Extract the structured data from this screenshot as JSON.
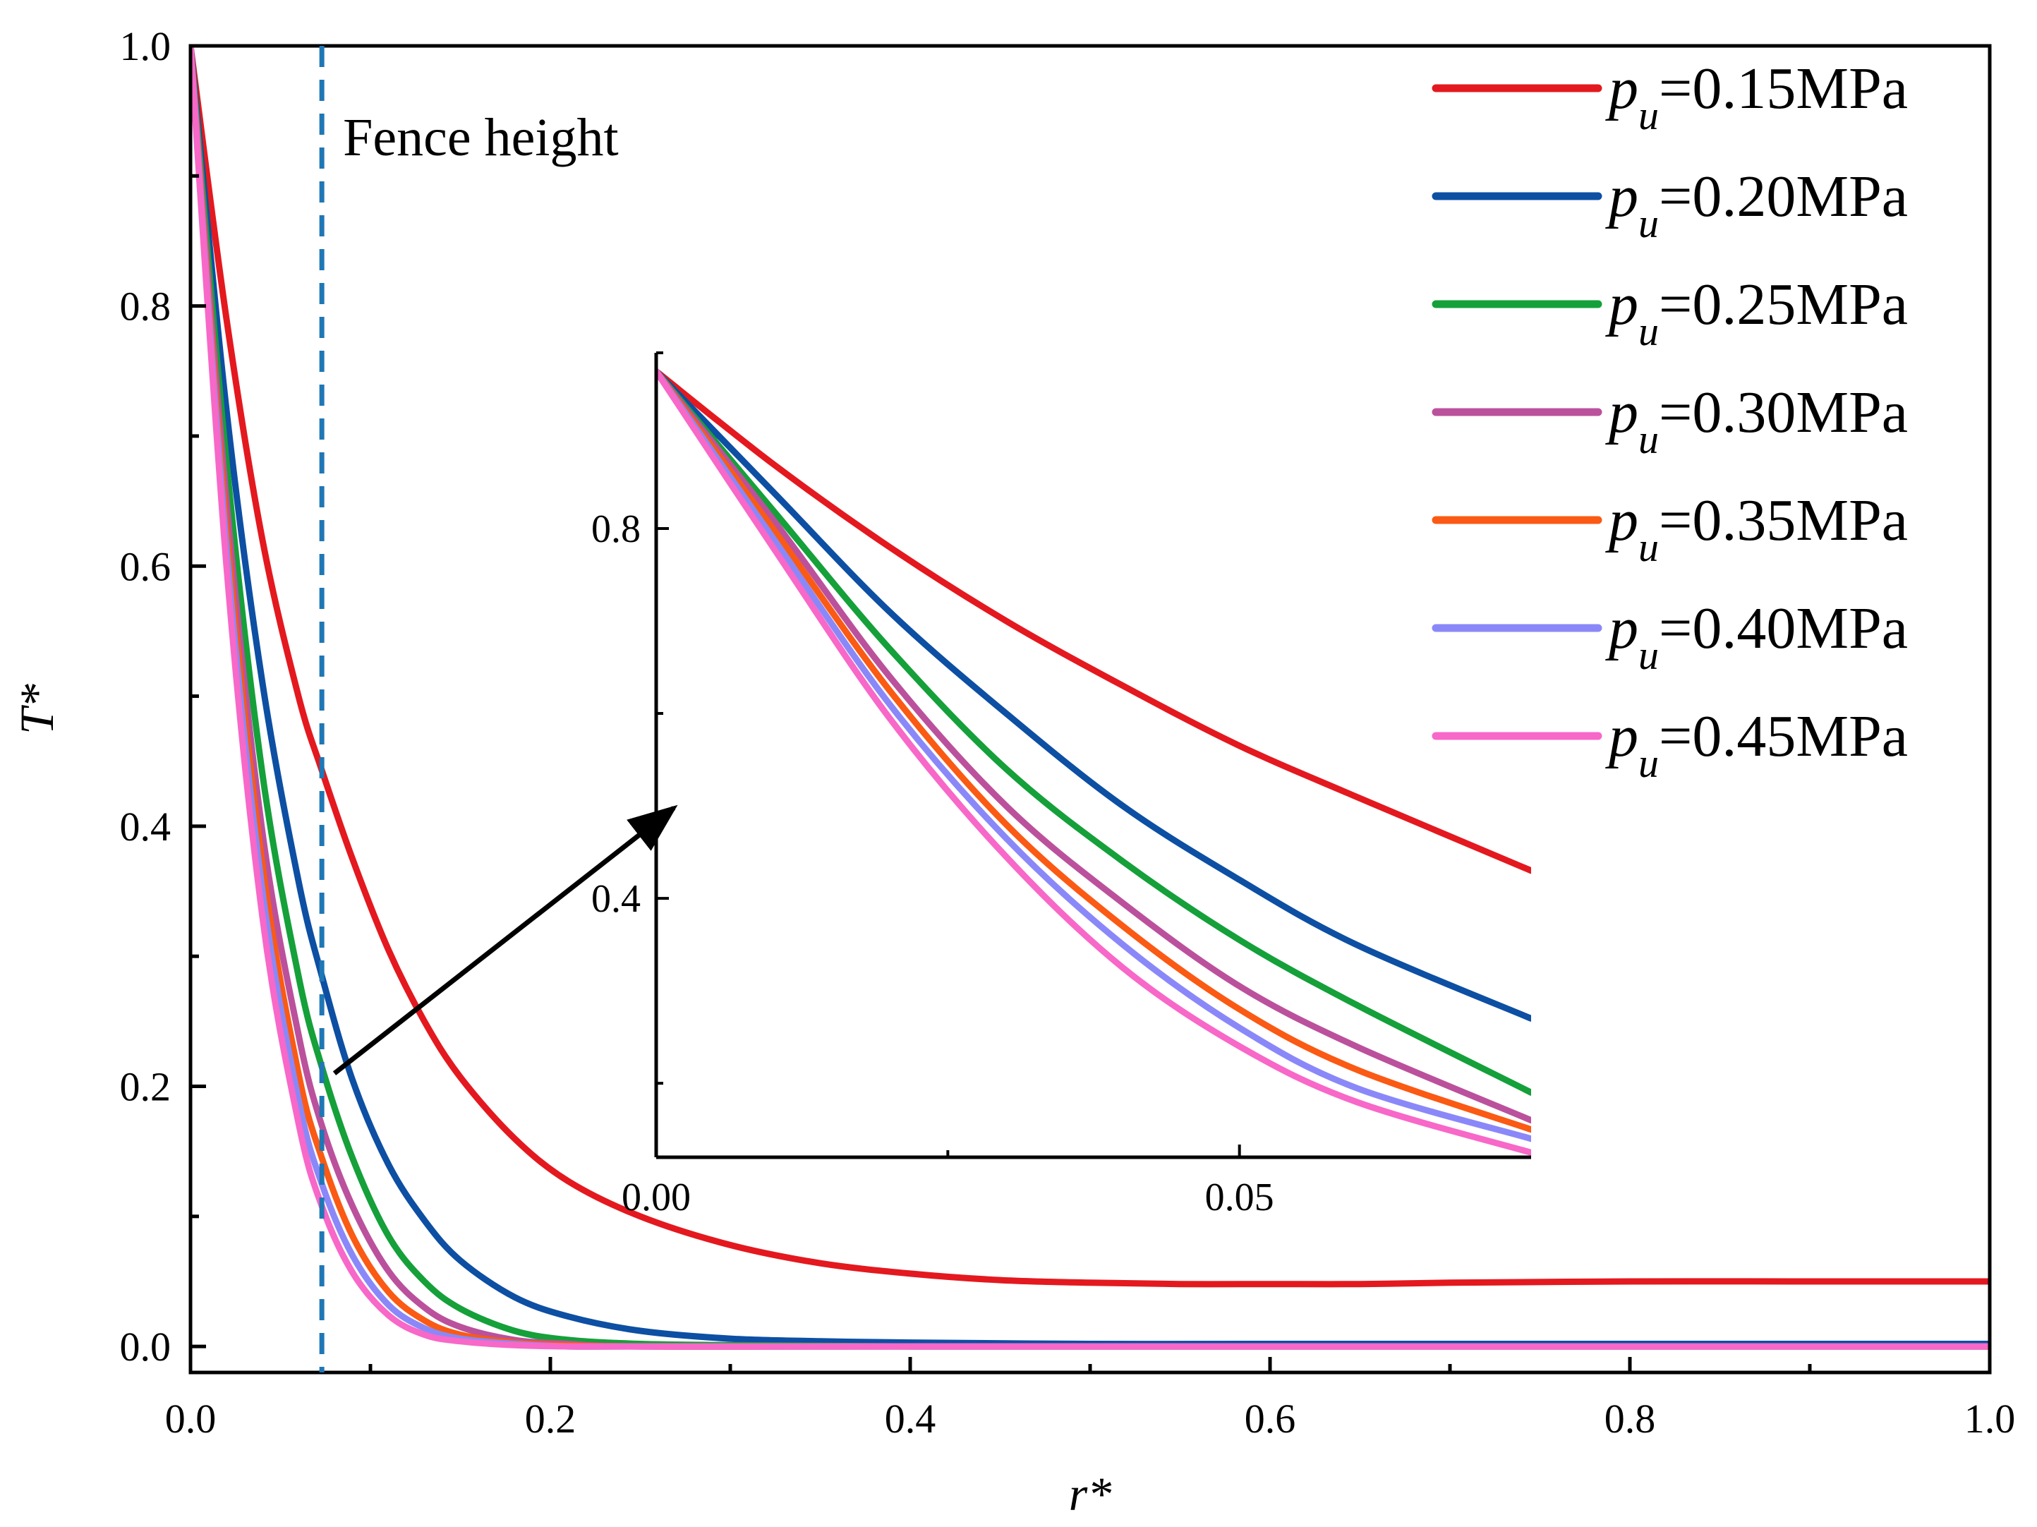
{
  "chart_data": [
    {
      "id": "main",
      "type": "line",
      "xlabel": "r*",
      "ylabel": "T*",
      "xlim": [
        0.0,
        1.0
      ],
      "ylim": [
        -0.02,
        1.0
      ],
      "xticks": [
        "0.0",
        "0.2",
        "0.4",
        "0.6",
        "0.8",
        "1.0"
      ],
      "xtick_values": [
        0.0,
        0.2,
        0.4,
        0.6,
        0.8,
        1.0
      ],
      "yticks": [
        "0.0",
        "0.2",
        "0.4",
        "0.6",
        "0.8",
        "1.0"
      ],
      "ytick_values": [
        0.0,
        0.2,
        0.4,
        0.6,
        0.8,
        1.0
      ],
      "annotation": {
        "text": "Fence height",
        "x": 0.073
      },
      "legend": {
        "placement": "top-right"
      },
      "series": [
        {
          "name": "p_u=0.15MPa",
          "symbol": "p",
          "subscript": "u",
          "value": "=0.15MPa",
          "color": "#e3191f",
          "x": [
            0.0,
            0.02,
            0.04,
            0.06,
            0.073,
            0.09,
            0.11,
            0.13,
            0.15,
            0.18,
            0.21,
            0.25,
            0.3,
            0.35,
            0.4,
            0.45,
            0.5,
            0.55,
            0.6,
            0.65,
            0.7,
            0.8,
            0.9,
            1.0
          ],
          "y": [
            1.0,
            0.79,
            0.62,
            0.5,
            0.443,
            0.375,
            0.305,
            0.25,
            0.207,
            0.16,
            0.127,
            0.1,
            0.078,
            0.064,
            0.056,
            0.051,
            0.049,
            0.048,
            0.048,
            0.048,
            0.049,
            0.05,
            0.05,
            0.05
          ]
        },
        {
          "name": "p_u=0.20MPa",
          "symbol": "p",
          "subscript": "u",
          "value": "=0.20MPa",
          "color": "#0d4fa3",
          "x": [
            0.0,
            0.02,
            0.04,
            0.06,
            0.073,
            0.09,
            0.11,
            0.13,
            0.15,
            0.18,
            0.21,
            0.25,
            0.3,
            0.35,
            0.4,
            0.5,
            0.6,
            0.8,
            1.0
          ],
          "y": [
            1.0,
            0.72,
            0.51,
            0.358,
            0.285,
            0.205,
            0.14,
            0.097,
            0.066,
            0.038,
            0.023,
            0.012,
            0.006,
            0.004,
            0.003,
            0.002,
            0.002,
            0.002,
            0.002
          ]
        },
        {
          "name": "p_u=0.25MPa",
          "symbol": "p",
          "subscript": "u",
          "value": "=0.25MPa",
          "color": "#15a03a",
          "x": [
            0.0,
            0.02,
            0.04,
            0.06,
            0.073,
            0.09,
            0.11,
            0.13,
            0.15,
            0.18,
            0.21,
            0.25,
            0.3,
            0.4,
            0.6,
            1.0
          ],
          "y": [
            1.0,
            0.68,
            0.44,
            0.285,
            0.215,
            0.145,
            0.085,
            0.05,
            0.029,
            0.012,
            0.005,
            0.002,
            0.001,
            0.0,
            0.0,
            0.0
          ]
        },
        {
          "name": "p_u=0.30MPa",
          "symbol": "p",
          "subscript": "u",
          "value": "=0.30MPa",
          "color": "#bb519c",
          "x": [
            0.0,
            0.02,
            0.04,
            0.06,
            0.073,
            0.09,
            0.11,
            0.13,
            0.15,
            0.18,
            0.21,
            0.25,
            0.4,
            1.0
          ],
          "y": [
            1.0,
            0.65,
            0.395,
            0.24,
            0.17,
            0.108,
            0.058,
            0.03,
            0.015,
            0.005,
            0.002,
            0.0,
            0.0,
            0.0
          ]
        },
        {
          "name": "p_u=0.35MPa",
          "symbol": "p",
          "subscript": "u",
          "value": "=0.35MPa",
          "color": "#fa5a14",
          "x": [
            0.0,
            0.02,
            0.04,
            0.06,
            0.073,
            0.09,
            0.11,
            0.13,
            0.15,
            0.18,
            0.21,
            0.25,
            0.4,
            1.0
          ],
          "y": [
            1.0,
            0.63,
            0.37,
            0.21,
            0.145,
            0.085,
            0.042,
            0.02,
            0.009,
            0.003,
            0.001,
            0.0,
            0.0,
            0.0
          ]
        },
        {
          "name": "p_u=0.40MPa",
          "symbol": "p",
          "subscript": "u",
          "value": "=0.40MPa",
          "color": "#8a88f8",
          "x": [
            0.0,
            0.02,
            0.04,
            0.06,
            0.073,
            0.09,
            0.11,
            0.13,
            0.15,
            0.18,
            0.21,
            0.25,
            0.4,
            1.0
          ],
          "y": [
            1.0,
            0.615,
            0.35,
            0.19,
            0.125,
            0.07,
            0.032,
            0.014,
            0.006,
            0.002,
            0.0,
            0.0,
            0.0,
            0.0
          ]
        },
        {
          "name": "p_u=0.45MPa",
          "symbol": "p",
          "subscript": "u",
          "value": "=0.45MPa",
          "color": "#f768c8",
          "x": [
            0.0,
            0.02,
            0.04,
            0.06,
            0.073,
            0.09,
            0.11,
            0.13,
            0.15,
            0.18,
            0.21,
            0.25,
            0.4,
            1.0
          ],
          "y": [
            1.0,
            0.6,
            0.33,
            0.172,
            0.108,
            0.057,
            0.024,
            0.009,
            0.004,
            0.001,
            0.0,
            0.0,
            0.0,
            0.0
          ]
        }
      ],
      "arrow": {
        "from": [
          0.08,
          0.21
        ],
        "to_inset": true
      }
    },
    {
      "id": "inset",
      "type": "line",
      "xlim": [
        0.0,
        0.075
      ],
      "ylim": [
        0.12,
        0.99
      ],
      "xticks": [
        "0.00",
        "0.05"
      ],
      "xtick_values": [
        0.0,
        0.05
      ],
      "yticks": [
        "0.4",
        "0.8"
      ],
      "ytick_values": [
        0.4,
        0.8
      ],
      "series": [
        {
          "name": "p_u=0.15MPa",
          "color": "#e3191f",
          "x": [
            0.0,
            0.01,
            0.02,
            0.03,
            0.04,
            0.05,
            0.06,
            0.075
          ],
          "y": [
            0.97,
            0.87,
            0.78,
            0.7,
            0.63,
            0.565,
            0.51,
            0.43
          ]
        },
        {
          "name": "p_u=0.20MPa",
          "color": "#0d4fa3",
          "x": [
            0.0,
            0.01,
            0.02,
            0.03,
            0.04,
            0.05,
            0.06,
            0.075
          ],
          "y": [
            0.97,
            0.84,
            0.71,
            0.6,
            0.5,
            0.42,
            0.35,
            0.27
          ]
        },
        {
          "name": "p_u=0.25MPa",
          "color": "#15a03a",
          "x": [
            0.0,
            0.01,
            0.02,
            0.03,
            0.04,
            0.05,
            0.06,
            0.075
          ],
          "y": [
            0.97,
            0.82,
            0.67,
            0.54,
            0.44,
            0.355,
            0.285,
            0.19
          ]
        },
        {
          "name": "p_u=0.30MPa",
          "color": "#bb519c",
          "x": [
            0.0,
            0.01,
            0.02,
            0.03,
            0.04,
            0.05,
            0.06,
            0.075
          ],
          "y": [
            0.97,
            0.81,
            0.64,
            0.5,
            0.395,
            0.305,
            0.24,
            0.16
          ]
        },
        {
          "name": "p_u=0.35MPa",
          "color": "#fa5a14",
          "x": [
            0.0,
            0.01,
            0.02,
            0.03,
            0.04,
            0.05,
            0.06,
            0.075
          ],
          "y": [
            0.97,
            0.8,
            0.625,
            0.48,
            0.37,
            0.28,
            0.215,
            0.15
          ]
        },
        {
          "name": "p_u=0.40MPa",
          "color": "#8a88f8",
          "x": [
            0.0,
            0.01,
            0.02,
            0.03,
            0.04,
            0.05,
            0.06,
            0.075
          ],
          "y": [
            0.97,
            0.79,
            0.61,
            0.465,
            0.35,
            0.26,
            0.195,
            0.14
          ]
        },
        {
          "name": "p_u=0.45MPa",
          "color": "#f768c8",
          "x": [
            0.0,
            0.01,
            0.02,
            0.03,
            0.04,
            0.05,
            0.06,
            0.075
          ],
          "y": [
            0.97,
            0.78,
            0.595,
            0.445,
            0.325,
            0.24,
            0.18,
            0.125
          ]
        }
      ]
    }
  ],
  "colors": {
    "fence_line": "#1f77b4",
    "axis": "#000000",
    "arrow": "#000000"
  }
}
